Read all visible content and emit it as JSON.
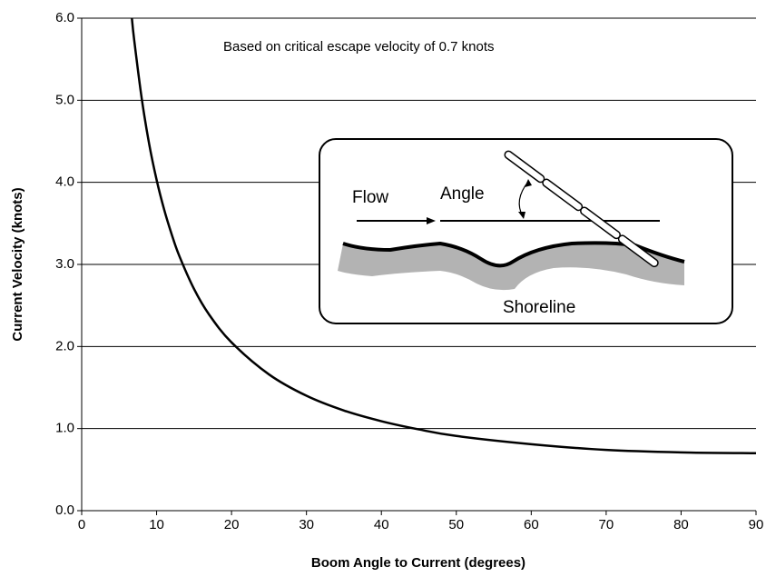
{
  "chart_data": {
    "type": "line",
    "annotation": "Based on critical escape velocity of 0.7 knots",
    "inset_labels": [
      "Flow",
      "Angle",
      "Shoreline"
    ],
    "x_label": "Boom Angle to Current (degrees)",
    "y_label": "Current Velocity (knots)",
    "x": [
      6.7,
      7,
      8,
      9,
      10,
      11,
      12,
      13,
      15,
      17,
      20,
      25,
      30,
      35,
      40,
      45,
      50,
      60,
      70,
      80,
      90
    ],
    "values": [
      6.0,
      5.74,
      5.03,
      4.47,
      4.03,
      3.67,
      3.37,
      3.11,
      2.7,
      2.39,
      2.05,
      1.66,
      1.4,
      1.22,
      1.09,
      0.99,
      0.91,
      0.81,
      0.74,
      0.71,
      0.7
    ],
    "color": "#000000",
    "xlim": [
      0,
      90
    ],
    "xticks": [
      0,
      10,
      20,
      30,
      40,
      50,
      60,
      70,
      80,
      90
    ],
    "ylim": [
      0,
      6
    ],
    "yticks": [
      {
        "value": 0,
        "label": "0.0"
      },
      {
        "value": 1,
        "label": "1.0"
      },
      {
        "value": 2,
        "label": "2.0"
      },
      {
        "value": 3,
        "label": "3.0"
      },
      {
        "value": 4,
        "label": "4.0"
      },
      {
        "value": 5,
        "label": "5.0"
      },
      {
        "value": 6,
        "label": "6.0"
      }
    ],
    "grid": true
  }
}
